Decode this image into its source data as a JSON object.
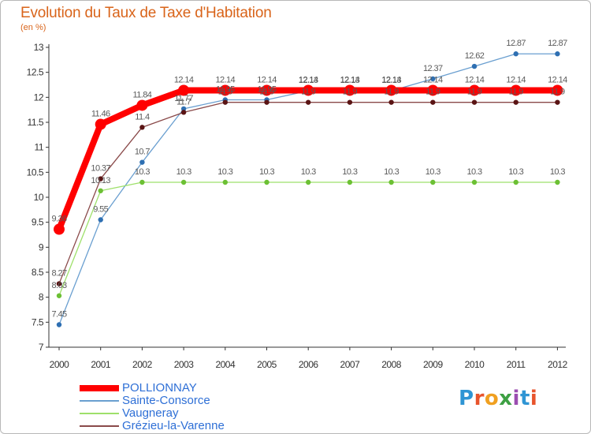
{
  "chart_data": {
    "type": "line",
    "title": "Evolution du Taux de Taxe d'Habitation",
    "subtitle": "(en %)",
    "xlabel": "",
    "ylabel": "(en %)",
    "ylim": [
      7,
      13
    ],
    "yticks": [
      "7",
      "7.5",
      "8",
      "8.5",
      "9",
      "9.5",
      "10",
      "10.5",
      "11",
      "11.5",
      "12",
      "12.5",
      "13"
    ],
    "categories": [
      "2000",
      "2001",
      "2002",
      "2003",
      "2004",
      "2005",
      "2006",
      "2007",
      "2008",
      "2009",
      "2010",
      "2011",
      "2012"
    ],
    "grid": false,
    "legend_position": "bottom-left",
    "series": [
      {
        "name": "POLLIONNAY",
        "color": "#ff0000",
        "emphasis": "thick",
        "values": [
          9.36,
          11.46,
          11.84,
          12.14,
          12.14,
          12.14,
          12.14,
          12.14,
          12.14,
          12.14,
          12.14,
          12.14,
          12.14
        ],
        "labels": [
          "9.36",
          "11.46",
          "11.84",
          "12.14",
          "12.14",
          "12.14",
          "12.14",
          "12.14",
          "12.14",
          "12.14",
          "12.14",
          "12.14",
          "12.14"
        ]
      },
      {
        "name": "Sainte-Consorce",
        "color": "#6a9fd0",
        "point_color": "#2e6fb2",
        "emphasis": "thin",
        "values": [
          7.45,
          9.55,
          10.7,
          11.77,
          11.95,
          11.95,
          12.13,
          12.13,
          12.13,
          12.37,
          12.62,
          12.87,
          12.87
        ],
        "labels": [
          "7.45",
          "9.55",
          "10.7",
          "11.77",
          "11.95",
          "11.95",
          "12.13",
          "12.13",
          "12.13",
          "12.37",
          "12.62",
          "12.87",
          "12.87"
        ]
      },
      {
        "name": "Vaugneray",
        "color": "#9ee06a",
        "point_color": "#6cc034",
        "emphasis": "thin",
        "values": [
          8.03,
          10.13,
          10.3,
          10.3,
          10.3,
          10.3,
          10.3,
          10.3,
          10.3,
          10.3,
          10.3,
          10.3,
          10.3
        ],
        "labels": [
          "8.03",
          "10.13",
          "10.3",
          "10.3",
          "10.3",
          "10.3",
          "10.3",
          "10.3",
          "10.3",
          "10.3",
          "10.3",
          "10.3",
          "10.3"
        ]
      },
      {
        "name": "Grézieu-la-Varenne",
        "color": "#8a4a4a",
        "point_color": "#5a1414",
        "emphasis": "thin",
        "values": [
          8.27,
          10.37,
          11.4,
          11.7,
          11.9,
          11.9,
          11.9,
          11.9,
          11.9,
          11.9,
          11.9,
          11.9,
          11.9
        ],
        "labels": [
          "8.27",
          "10.37",
          "11.4",
          "11.7",
          "11.9",
          "11.9",
          "11.9",
          "11.9",
          "11.9",
          "11.9",
          "11.9",
          "11.9",
          "11.9"
        ]
      }
    ]
  },
  "logo": {
    "text": "Proxiti",
    "letters": [
      "P",
      "r",
      "o",
      "x",
      "i",
      "t",
      "i"
    ]
  },
  "colors": {
    "title": "#d9641a",
    "axis": "#333333",
    "label": "#5a5a5a"
  }
}
